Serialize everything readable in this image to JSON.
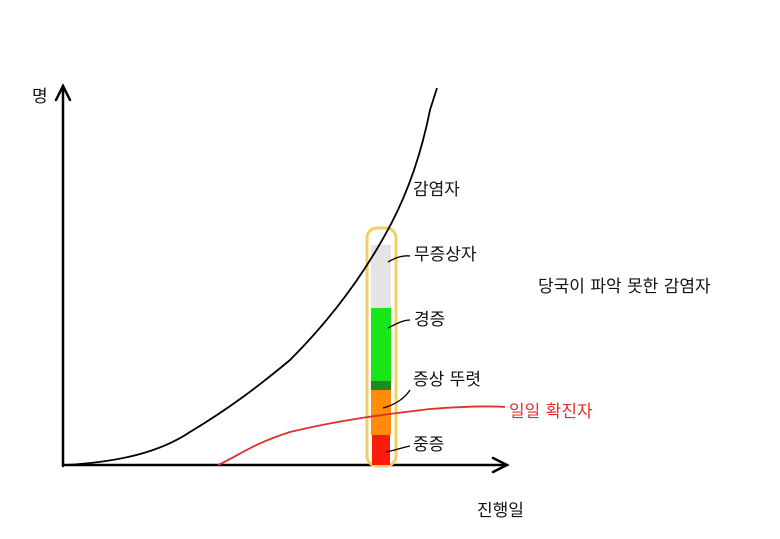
{
  "axes": {
    "y_label": "명",
    "x_label": "진행일"
  },
  "curves": {
    "infected": "감염자",
    "daily_confirmed": "일일 확진자"
  },
  "bands": [
    "무증상자",
    "경증",
    "증상 뚜렷",
    "중증"
  ],
  "note": "당국이 파악 못한 감염자"
}
